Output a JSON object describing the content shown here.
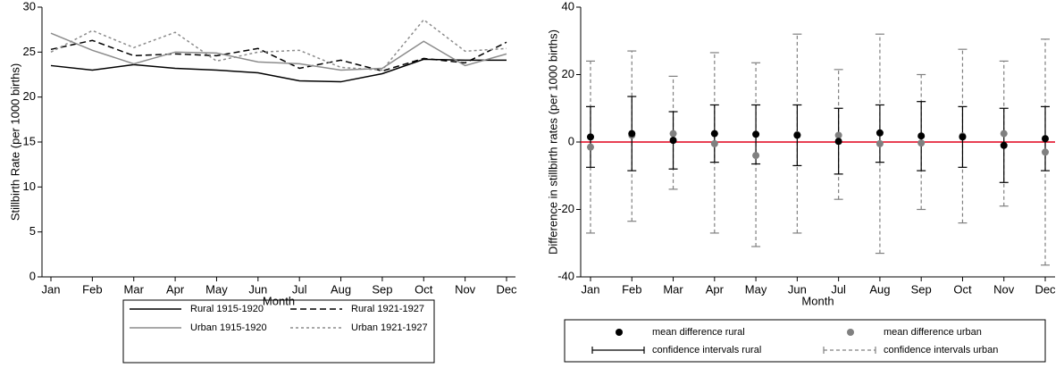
{
  "chart_data": [
    {
      "type": "line",
      "ylabel": "Stillbirth Rate (per 1000 births)",
      "xlabel": "Month",
      "categories": [
        "Jan",
        "Feb",
        "Mar",
        "Apr",
        "May",
        "Jun",
        "Jul",
        "Aug",
        "Sep",
        "Oct",
        "Nov",
        "Dec"
      ],
      "ylim": [
        0,
        30
      ],
      "yticks": [
        0,
        5,
        10,
        15,
        20,
        25,
        30
      ],
      "series": [
        {
          "name": "Rural 1915-1920",
          "color": "#000000",
          "style": "solid",
          "values": [
            23.5,
            23.0,
            23.6,
            23.2,
            23.0,
            22.7,
            21.8,
            21.7,
            22.6,
            24.2,
            24.1,
            24.1
          ]
        },
        {
          "name": "Rural 1921-1927",
          "color": "#000000",
          "style": "dashed",
          "values": [
            25.3,
            26.3,
            24.6,
            24.8,
            24.6,
            25.4,
            23.2,
            24.1,
            22.9,
            24.3,
            23.8,
            26.1
          ]
        },
        {
          "name": "Urban 1915-1920",
          "color": "#8c8c8c",
          "style": "solid",
          "values": [
            27.1,
            25.2,
            23.7,
            25.0,
            24.9,
            23.9,
            23.7,
            23.0,
            23.2,
            26.2,
            23.5,
            24.8
          ]
        },
        {
          "name": "Urban 1921-1927",
          "color": "#8c8c8c",
          "style": "dotted",
          "values": [
            25.0,
            27.4,
            25.5,
            27.2,
            24.0,
            25.0,
            25.2,
            23.3,
            23.0,
            28.6,
            25.1,
            25.4
          ]
        }
      ]
    },
    {
      "type": "errorbar",
      "ylabel": "Difference in stillbirth rates (per 1000 births)",
      "xlabel": "Month",
      "categories": [
        "Jan",
        "Feb",
        "Mar",
        "Apr",
        "May",
        "Jun",
        "Jul",
        "Aug",
        "Sep",
        "Oct",
        "Nov",
        "Dec"
      ],
      "ylim": [
        -40,
        40
      ],
      "yticks": [
        -40,
        -20,
        0,
        20,
        40
      ],
      "refline": 0,
      "refline_color": "#e0001b",
      "series": [
        {
          "name": "mean difference rural",
          "ci_name": "confidence intervals rural",
          "color": "#000000",
          "style": "solid",
          "values": [
            1.5,
            2.5,
            0.5,
            2.5,
            2.3,
            2.0,
            0.2,
            2.7,
            1.8,
            1.5,
            -1.0,
            1.0
          ],
          "lower": [
            -7.5,
            -8.5,
            -8.0,
            -6.0,
            -6.5,
            -7.0,
            -9.5,
            -6.0,
            -8.5,
            -7.5,
            -12.0,
            -8.5
          ],
          "upper": [
            10.5,
            13.5,
            9.0,
            11.0,
            11.0,
            11.0,
            10.0,
            11.0,
            12.0,
            10.5,
            10.0,
            10.5
          ]
        },
        {
          "name": "mean difference urban",
          "ci_name": "confidence intervals urban",
          "color": "#808080",
          "style": "dashed",
          "values": [
            -1.5,
            2.0,
            2.5,
            -0.5,
            -4.0,
            2.2,
            2.0,
            -0.5,
            -0.3,
            1.8,
            2.5,
            -3.0
          ],
          "lower": [
            -27,
            -23.5,
            -14,
            -27,
            -31,
            -27,
            -17,
            -33,
            -20,
            -24,
            -19,
            -36.5
          ],
          "upper": [
            24,
            27,
            19.5,
            26.5,
            23.5,
            32,
            21.5,
            32,
            20,
            27.5,
            24,
            30.5
          ]
        }
      ]
    }
  ]
}
